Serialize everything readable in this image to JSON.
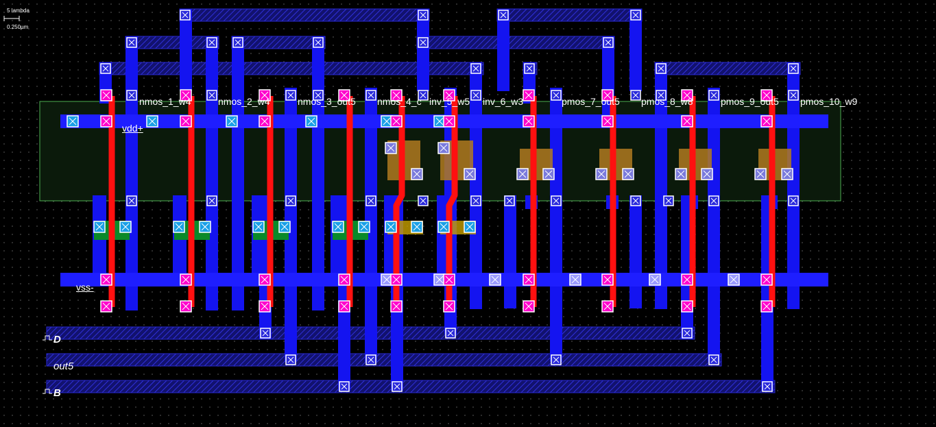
{
  "scale": {
    "top": "5 lambda",
    "bottom": "0.250µm"
  },
  "rails": {
    "vdd": "vdd+",
    "vss": "vss-"
  },
  "pins": {
    "d": "D",
    "out5": "out5",
    "b": "B"
  },
  "transistors": [
    "nmos_1_w4",
    "nmos_2_w4",
    "nmos_3_out5",
    "nmos_4_c",
    "inv_5_w5",
    "inv_6_w3",
    "pmos_7_out5",
    "pmos_8_w8",
    "pmos_9_out5",
    "pmos_10_w9"
  ],
  "colors": {
    "metal1": "#0000ff",
    "metal2": "#1d1dc8",
    "poly": "#ff0000",
    "contact": "#ff00cc",
    "well": "#1a3a1a",
    "diffusion": "#ff8c00"
  }
}
